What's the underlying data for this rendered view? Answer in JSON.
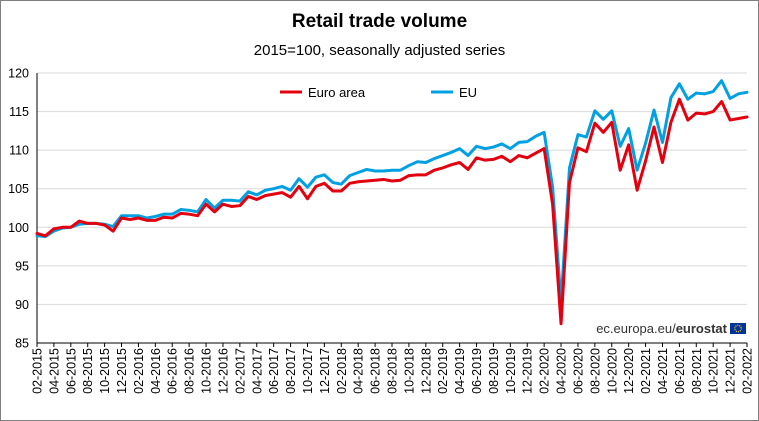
{
  "chart_data": {
    "type": "line",
    "title": "Retail trade volume",
    "subtitle": "2015=100, seasonally adjusted series",
    "xlabel": "",
    "ylabel": "",
    "ylim": [
      85,
      120
    ],
    "yticks": [
      85,
      90,
      95,
      100,
      105,
      110,
      115,
      120
    ],
    "grid": true,
    "legend_position": "top-right",
    "x_tick_labels": [
      "02-2015",
      "04-2015",
      "06-2015",
      "08-2015",
      "10-2015",
      "12-2015",
      "02-2016",
      "04-2016",
      "06-2016",
      "08-2016",
      "10-2016",
      "12-2016",
      "02-2017",
      "04-2017",
      "06-2017",
      "08-2017",
      "10-2017",
      "12-2017",
      "02-2018",
      "04-2018",
      "06-2018",
      "08-2018",
      "10-2018",
      "12-2018",
      "02-2019",
      "04-2019",
      "06-2019",
      "08-2019",
      "10-2019",
      "12-2019",
      "02-2020",
      "04-2020",
      "06-2020",
      "08-2020",
      "10-2020",
      "12-2020",
      "02-2021",
      "04-2021",
      "06-2021",
      "08-2021",
      "10-2021",
      "12-2021",
      "02-2022"
    ],
    "series": [
      {
        "name": "Euro area",
        "color": "#e3000f",
        "values": [
          99.2,
          98.9,
          99.8,
          100.0,
          100.0,
          100.8,
          100.5,
          100.5,
          100.3,
          99.5,
          101.2,
          101.0,
          101.2,
          100.9,
          100.9,
          101.3,
          101.2,
          101.8,
          101.7,
          101.5,
          103.0,
          102.0,
          103.0,
          102.7,
          102.8,
          104.0,
          103.6,
          104.1,
          104.3,
          104.5,
          103.9,
          105.3,
          103.7,
          105.3,
          105.7,
          104.7,
          104.7,
          105.7,
          105.9,
          106.0,
          106.1,
          106.2,
          106.0,
          106.1,
          106.7,
          106.8,
          106.8,
          107.4,
          107.7,
          108.1,
          108.4,
          107.5,
          109.0,
          108.7,
          108.8,
          109.2,
          108.5,
          109.3,
          109.0,
          109.6,
          110.2,
          103.0,
          87.5,
          105.8,
          110.3,
          109.8,
          113.5,
          112.3,
          113.6,
          107.4,
          110.7,
          104.8,
          108.6,
          113.0,
          108.4,
          113.6,
          116.6,
          113.9,
          114.8,
          114.7,
          115.0,
          116.3,
          113.9,
          114.1,
          114.3
        ]
      },
      {
        "name": "EU",
        "color": "#00a0e3",
        "values": [
          98.9,
          98.8,
          99.5,
          99.9,
          100.0,
          100.4,
          100.5,
          100.5,
          100.4,
          100.1,
          101.5,
          101.5,
          101.5,
          101.2,
          101.4,
          101.7,
          101.7,
          102.3,
          102.2,
          102.0,
          103.6,
          102.5,
          103.5,
          103.5,
          103.4,
          104.6,
          104.2,
          104.8,
          105.0,
          105.3,
          104.8,
          106.3,
          105.2,
          106.5,
          106.8,
          105.8,
          105.6,
          106.7,
          107.1,
          107.5,
          107.3,
          107.3,
          107.4,
          107.4,
          108.0,
          108.5,
          108.4,
          108.9,
          109.3,
          109.7,
          110.2,
          109.3,
          110.5,
          110.2,
          110.4,
          110.8,
          110.2,
          111.0,
          111.1,
          111.8,
          112.3,
          105.2,
          90.2,
          107.7,
          112.0,
          111.7,
          115.1,
          114.0,
          115.1,
          110.5,
          112.8,
          107.4,
          110.9,
          115.2,
          111.0,
          116.8,
          118.6,
          116.6,
          117.4,
          117.3,
          117.6,
          119.0,
          116.7,
          117.3,
          117.5
        ]
      }
    ]
  },
  "credit": {
    "prefix": "ec.europa.eu/",
    "brand": "eurostat"
  },
  "colors": {
    "grid": "#d9d9d9",
    "axis": "#000000",
    "flag_blue": "#003399",
    "flag_star": "#ffcc00"
  }
}
